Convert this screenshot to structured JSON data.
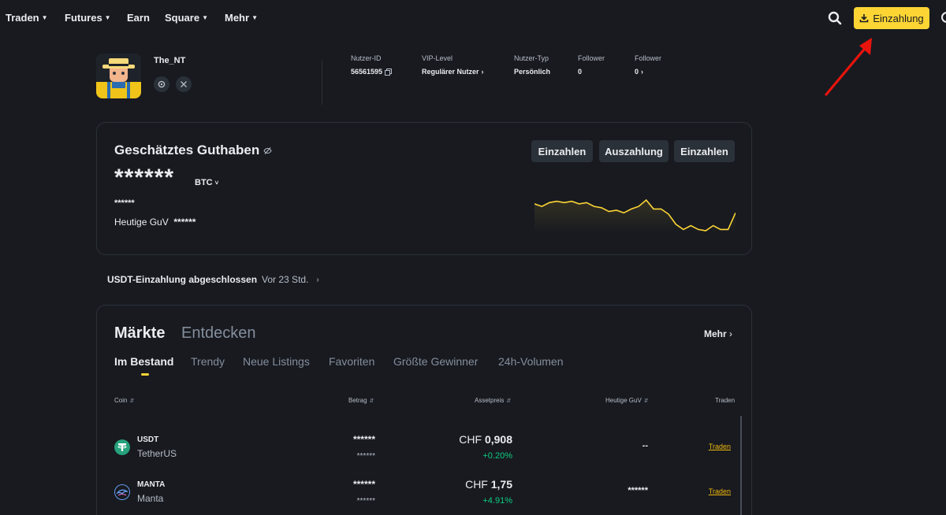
{
  "nav": {
    "items": [
      {
        "label": "Traden",
        "dropdown": true
      },
      {
        "label": "Futures",
        "dropdown": true
      },
      {
        "label": "Earn",
        "dropdown": false
      },
      {
        "label": "Square",
        "dropdown": true
      },
      {
        "label": "Mehr",
        "dropdown": true
      }
    ],
    "search_icon": "search-icon",
    "deposit_label": "Einzahlung",
    "deposit_icon": "download-icon",
    "globe_icon": "globe-icon"
  },
  "colors": {
    "background": "#181a20",
    "accent": "#fcd535",
    "positive": "#0ecb81",
    "muted": "#848e9c",
    "annotation": "#e8140c"
  },
  "profile": {
    "username": "The_NT",
    "social_icons": [
      "binance-icon",
      "x-icon"
    ],
    "stats": [
      {
        "label": "Nutzer-ID",
        "value": "56561595",
        "icon": "copy-icon"
      },
      {
        "label": "VIP-Level",
        "value": "Regulärer Nutzer",
        "chevron": true
      },
      {
        "label": "Nutzer-Typ",
        "value": "Persönlich"
      },
      {
        "label": "Follower",
        "value": "0"
      },
      {
        "label": "Follower",
        "value": "0",
        "chevron": true
      }
    ]
  },
  "balance": {
    "title": "Geschätztes Guthaben",
    "hide_icon": "eye-slash-icon",
    "amount": "******",
    "unit": "BTC",
    "fiat": "******",
    "pnl_label": "Heutige GuV",
    "pnl_value": "******",
    "buttons": [
      "Einzahlen",
      "Auszahlung",
      "Einzahlen"
    ],
    "sparkline": [
      55,
      53,
      56,
      57,
      56,
      57,
      55,
      56,
      53,
      52,
      49,
      50,
      48,
      51,
      53,
      58,
      51,
      51,
      47,
      39,
      35,
      38,
      35,
      34,
      38,
      35,
      35,
      48
    ]
  },
  "notice": {
    "title": "USDT-Einzahlung abgeschlossen",
    "time": "Vor 23 Std."
  },
  "markets": {
    "tab_main": "Märkte",
    "tab_discover": "Entdecken",
    "more_label": "Mehr",
    "subtabs": [
      "Im Bestand",
      "Trendy",
      "Neue Listings",
      "Favoriten",
      "Größte Gewinner",
      "24h-Volumen"
    ],
    "columns": [
      "Coin",
      "Betrag",
      "Assetpreis",
      "Heutige GuV",
      "Traden"
    ],
    "rows": [
      {
        "symbol": "USDT",
        "name": "TetherUS",
        "amount": "******",
        "amount_sub": "******",
        "currency": "CHF",
        "price": "0,908",
        "change": "+0.20%",
        "pnl": "--",
        "trade": "Traden",
        "icon": "tether-icon"
      },
      {
        "symbol": "MANTA",
        "name": "Manta",
        "amount": "******",
        "amount_sub": "******",
        "currency": "CHF",
        "price": "1,75",
        "change": "+4.91%",
        "pnl": "******",
        "trade": "Traden",
        "icon": "manta-icon"
      }
    ]
  }
}
